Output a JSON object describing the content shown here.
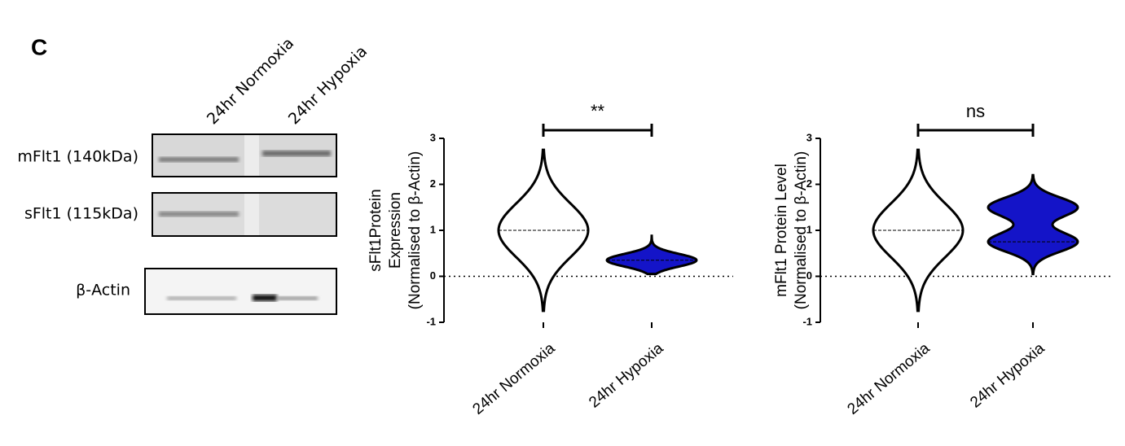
{
  "panel_label": "C",
  "blot": {
    "lanes": [
      "24hr Normoxia",
      "24hr Hypoxia"
    ],
    "rows": [
      "mFlt1 (140kDa)",
      "sFlt1 (115kDa)",
      "β-Actin"
    ]
  },
  "chart_data": [
    {
      "type": "violin",
      "ylabel": [
        "sFlt1Protein",
        "Expression",
        "(Normalised to β-Actin)"
      ],
      "categories": [
        "24hr Normoxia",
        "24hr Hypoxia"
      ],
      "colors": [
        "#ffffff",
        "#1414c8"
      ],
      "violins": [
        {
          "min": -0.75,
          "max": 2.75,
          "median": 1.0,
          "modes": [
            1.0
          ]
        },
        {
          "min": 0.05,
          "max": 0.88,
          "median": 0.35,
          "modes": [
            0.35
          ]
        }
      ],
      "ylim": [
        -1,
        3
      ],
      "yticks": [
        -1,
        0,
        1,
        2,
        3
      ],
      "refline": 0,
      "significance": "**"
    },
    {
      "type": "violin",
      "ylabel": [
        "mFlt1 Protein Level",
        "(Normalised to β-Actin)"
      ],
      "categories": [
        "24hr Normoxia",
        "24hr Hypoxia"
      ],
      "colors": [
        "#ffffff",
        "#1414c8"
      ],
      "violins": [
        {
          "min": -0.75,
          "max": 2.75,
          "median": 1.0,
          "modes": [
            1.0
          ]
        },
        {
          "min": 0.05,
          "max": 2.2,
          "median": 0.75,
          "modes": [
            0.75,
            1.5
          ]
        }
      ],
      "ylim": [
        -1,
        3
      ],
      "yticks": [
        -1,
        0,
        1,
        2,
        3
      ],
      "refline": 0,
      "significance": "ns"
    }
  ]
}
